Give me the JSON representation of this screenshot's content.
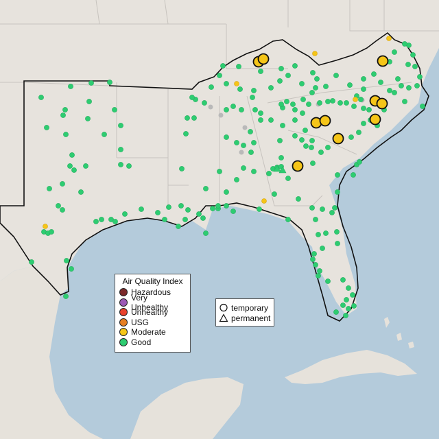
{
  "aqi_legend": {
    "title": "Air Quality Index",
    "categories": [
      {
        "label": "Hazardous",
        "color": "#7b2a2a"
      },
      {
        "label": "Very Unhealthy",
        "color": "#9b59b6"
      },
      {
        "label": "Unhealthy",
        "color": "#e8412c"
      },
      {
        "label": "USG",
        "color": "#e67e22"
      },
      {
        "label": "Moderate",
        "color": "#f5c518"
      },
      {
        "label": "Good",
        "color": "#2ecc71"
      }
    ]
  },
  "monitor_type_legend": {
    "items": [
      {
        "label": "temporary",
        "icon": "circle-outline-icon"
      },
      {
        "label": "permanent",
        "icon": "triangle-outline-icon"
      }
    ]
  },
  "colors": {
    "ocean": "#b3ccdc",
    "land": "#e8e5e0",
    "state_border": "#c9c5c0",
    "region_outline": "#111111",
    "no_data": "#b9b9b9"
  }
}
